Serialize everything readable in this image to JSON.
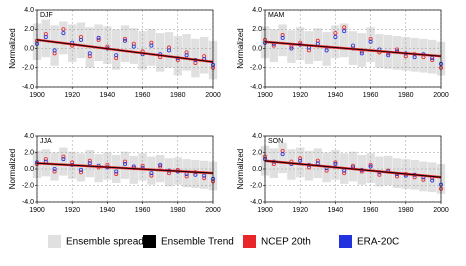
{
  "chart_data": [
    {
      "type": "scatter",
      "title": "DJF",
      "ylabel": "Normalized",
      "grid": true,
      "xlim": [
        1900,
        2000
      ],
      "xticks": [
        1900,
        1920,
        1940,
        1960,
        1980,
        2000
      ],
      "ylim": [
        -4,
        4
      ],
      "yticks": [
        {
          "value": 4,
          "label": "4.0"
        },
        {
          "value": 2,
          "label": "2.0"
        },
        {
          "value": 0,
          "label": "0.0"
        },
        {
          "value": -2,
          "label": "-2.0"
        },
        {
          "value": -4,
          "label": "-4.0"
        }
      ],
      "x": [
        1900,
        1905,
        1910,
        1915,
        1920,
        1925,
        1930,
        1935,
        1940,
        1945,
        1950,
        1955,
        1960,
        1965,
        1970,
        1975,
        1980,
        1985,
        1990,
        1995,
        2000
      ],
      "spread": {
        "name": "Ensemble spread",
        "color": "#e0e0e0",
        "upper": [
          2.6,
          3.0,
          2.4,
          2.8,
          2.5,
          2.7,
          2.2,
          2.5,
          2.3,
          2.0,
          2.4,
          2.1,
          1.8,
          2.0,
          1.6,
          1.7,
          1.3,
          1.5,
          1.0,
          1.2,
          0.8
        ],
        "lower": [
          -1.2,
          -0.9,
          -1.8,
          -0.6,
          -1.4,
          -1.0,
          -2.0,
          -1.3,
          -1.6,
          -2.2,
          -1.4,
          -1.6,
          -2.2,
          -1.8,
          -2.4,
          -2.0,
          -2.8,
          -2.3,
          -3.0,
          -2.6,
          -3.2
        ]
      },
      "trend": {
        "name": "Ensemble Trend",
        "color": "#000000",
        "x": [
          1900,
          2000
        ],
        "values": [
          0.9,
          -1.4
        ]
      },
      "series": [
        {
          "name": "NCEP 20th",
          "color": "#e8262a",
          "values": [
            0.8,
            1.5,
            -0.5,
            2.0,
            0.3,
            1.2,
            -0.8,
            0.9,
            0.2,
            -1.0,
            1.0,
            0.5,
            -0.3,
            0.6,
            -0.9,
            0.1,
            -1.2,
            -0.4,
            -1.5,
            -0.8,
            -2.0
          ]
        },
        {
          "name": "ERA-20C",
          "color": "#2233dd",
          "values": [
            0.5,
            1.2,
            -0.2,
            1.6,
            0.6,
            0.9,
            -0.5,
            1.1,
            0.0,
            -0.7,
            0.8,
            0.2,
            -0.6,
            0.3,
            -0.6,
            -0.2,
            -1.0,
            -0.7,
            -1.2,
            -1.1,
            -1.7
          ]
        }
      ]
    },
    {
      "type": "scatter",
      "title": "MAM",
      "ylabel": "Normalized",
      "grid": true,
      "xlim": [
        1900,
        2000
      ],
      "xticks": [
        1900,
        1920,
        1940,
        1960,
        1980,
        2000
      ],
      "ylim": [
        -4,
        4
      ],
      "yticks": [
        {
          "value": 4,
          "label": "4.0"
        },
        {
          "value": 2,
          "label": "2.0"
        },
        {
          "value": 0,
          "label": "0.0"
        },
        {
          "value": -2,
          "label": "-2.0"
        },
        {
          "value": -4,
          "label": "-4.0"
        }
      ],
      "x": [
        1900,
        1905,
        1910,
        1915,
        1920,
        1925,
        1930,
        1935,
        1940,
        1945,
        1950,
        1955,
        1960,
        1965,
        1970,
        1975,
        1980,
        1985,
        1990,
        1995,
        2000
      ],
      "spread": {
        "name": "Ensemble spread",
        "color": "#e0e0e0",
        "upper": [
          2.3,
          2.0,
          2.5,
          1.9,
          2.2,
          1.8,
          2.1,
          1.7,
          2.4,
          2.6,
          1.8,
          1.6,
          2.2,
          1.5,
          1.4,
          1.3,
          1.2,
          1.1,
          1.0,
          0.9,
          0.7
        ],
        "lower": [
          -1.0,
          -1.4,
          -0.8,
          -1.5,
          -1.2,
          -1.6,
          -1.3,
          -1.8,
          -1.0,
          -0.9,
          -1.7,
          -1.9,
          -1.4,
          -2.0,
          -2.1,
          -2.2,
          -2.3,
          -2.4,
          -2.5,
          -2.6,
          -2.8
        ]
      },
      "trend": {
        "name": "Ensemble Trend",
        "color": "#000000",
        "x": [
          1900,
          2000
        ],
        "values": [
          0.7,
          -0.8
        ]
      },
      "series": [
        {
          "name": "NCEP 20th",
          "color": "#e8262a",
          "values": [
            0.9,
            0.3,
            1.4,
            0.2,
            0.6,
            -0.2,
            0.8,
            0.1,
            1.6,
            2.2,
            0.0,
            -0.3,
            1.0,
            -0.4,
            -0.5,
            -0.1,
            -0.8,
            -0.6,
            -0.9,
            -1.2,
            -2.0
          ]
        },
        {
          "name": "ERA-20C",
          "color": "#2233dd",
          "values": [
            0.6,
            0.5,
            1.1,
            0.0,
            0.4,
            0.1,
            0.5,
            -0.2,
            1.2,
            1.8,
            0.3,
            -0.5,
            0.7,
            -0.1,
            -0.7,
            -0.3,
            -0.5,
            -0.9,
            -0.6,
            -1.0,
            -1.6
          ]
        }
      ]
    },
    {
      "type": "scatter",
      "title": "JJA",
      "ylabel": "Normalized",
      "grid": true,
      "xlim": [
        1900,
        2000
      ],
      "xticks": [
        1900,
        1920,
        1940,
        1960,
        1980,
        2000
      ],
      "ylim": [
        -4,
        4
      ],
      "yticks": [
        {
          "value": 4,
          "label": "4.0"
        },
        {
          "value": 2,
          "label": "2.0"
        },
        {
          "value": 0,
          "label": "0.0"
        },
        {
          "value": -2,
          "label": "-2.0"
        },
        {
          "value": -4,
          "label": "-4.0"
        }
      ],
      "x": [
        1900,
        1905,
        1910,
        1915,
        1920,
        1925,
        1930,
        1935,
        1940,
        1945,
        1950,
        1955,
        1960,
        1965,
        1970,
        1975,
        1980,
        1985,
        1990,
        1995,
        2000
      ],
      "spread": {
        "name": "Ensemble spread",
        "color": "#e0e0e0",
        "upper": [
          2.2,
          2.4,
          2.0,
          2.6,
          2.1,
          1.9,
          2.3,
          1.8,
          2.0,
          1.7,
          2.1,
          1.6,
          1.9,
          1.5,
          1.7,
          1.3,
          1.4,
          1.2,
          1.1,
          1.0,
          0.9
        ],
        "lower": [
          -1.1,
          -0.9,
          -1.4,
          -0.8,
          -1.2,
          -1.5,
          -1.0,
          -1.6,
          -1.3,
          -1.7,
          -1.2,
          -1.8,
          -1.4,
          -1.9,
          -1.6,
          -2.1,
          -1.9,
          -2.2,
          -2.3,
          -2.4,
          -2.6
        ]
      },
      "trend": {
        "name": "Ensemble Trend",
        "color": "#000000",
        "x": [
          1900,
          2000
        ],
        "values": [
          0.7,
          -0.5
        ]
      },
      "series": [
        {
          "name": "NCEP 20th",
          "color": "#e8262a",
          "values": [
            0.6,
            1.2,
            -0.3,
            1.5,
            0.8,
            -0.4,
            1.0,
            0.2,
            0.5,
            -0.6,
            0.9,
            0.1,
            0.4,
            -0.8,
            0.3,
            -0.5,
            -0.1,
            -0.9,
            -0.4,
            -1.1,
            -1.5
          ]
        },
        {
          "name": "ERA-20C",
          "color": "#2233dd",
          "values": [
            0.8,
            0.9,
            0.0,
            1.2,
            0.5,
            -0.1,
            0.7,
            0.4,
            0.2,
            -0.3,
            0.6,
            0.3,
            0.1,
            -0.5,
            0.5,
            -0.2,
            -0.3,
            -0.6,
            -0.7,
            -0.8,
            -1.2
          ]
        }
      ]
    },
    {
      "type": "scatter",
      "title": "SON",
      "ylabel": "Normalized",
      "grid": true,
      "xlim": [
        1900,
        2000
      ],
      "xticks": [
        1900,
        1920,
        1940,
        1960,
        1980,
        2000
      ],
      "ylim": [
        -4,
        4
      ],
      "yticks": [
        {
          "value": 4,
          "label": "4.0"
        },
        {
          "value": 2,
          "label": "2.0"
        },
        {
          "value": 0,
          "label": "0.0"
        },
        {
          "value": -2,
          "label": "-2.0"
        },
        {
          "value": -4,
          "label": "-4.0"
        }
      ],
      "x": [
        1900,
        1905,
        1910,
        1915,
        1920,
        1925,
        1930,
        1935,
        1940,
        1945,
        1950,
        1955,
        1960,
        1965,
        1970,
        1975,
        1980,
        1985,
        1990,
        1995,
        2000
      ],
      "spread": {
        "name": "Ensemble spread",
        "color": "#e0e0e0",
        "upper": [
          2.8,
          2.5,
          3.2,
          2.4,
          2.6,
          2.2,
          2.5,
          2.0,
          2.3,
          1.9,
          2.1,
          1.7,
          1.9,
          1.5,
          1.6,
          1.3,
          1.2,
          1.1,
          0.9,
          0.8,
          0.6
        ],
        "lower": [
          -0.8,
          -1.1,
          -0.5,
          -1.3,
          -1.0,
          -1.4,
          -1.1,
          -1.6,
          -1.3,
          -1.8,
          -1.5,
          -1.9,
          -1.7,
          -2.1,
          -2.0,
          -2.3,
          -2.4,
          -2.5,
          -2.7,
          -2.8,
          -3.0
        ]
      },
      "trend": {
        "name": "Ensemble Trend",
        "color": "#000000",
        "x": [
          1900,
          2000
        ],
        "values": [
          1.0,
          -1.0
        ]
      },
      "series": [
        {
          "name": "NCEP 20th",
          "color": "#e8262a",
          "values": [
            1.5,
            0.6,
            2.2,
            0.9,
            1.3,
            0.2,
            1.0,
            -0.2,
            0.8,
            -0.5,
            0.4,
            -0.3,
            0.5,
            -0.7,
            -0.2,
            -0.9,
            -0.6,
            -1.0,
            -1.3,
            -1.1,
            -2.4
          ]
        },
        {
          "name": "ERA-20C",
          "color": "#2233dd",
          "values": [
            1.2,
            0.9,
            1.8,
            0.6,
            1.0,
            0.5,
            0.7,
            0.1,
            0.6,
            -0.2,
            0.2,
            -0.1,
            0.3,
            -0.4,
            -0.3,
            -0.6,
            -0.8,
            -0.7,
            -1.0,
            -1.4,
            -1.9
          ]
        }
      ]
    }
  ]
}
